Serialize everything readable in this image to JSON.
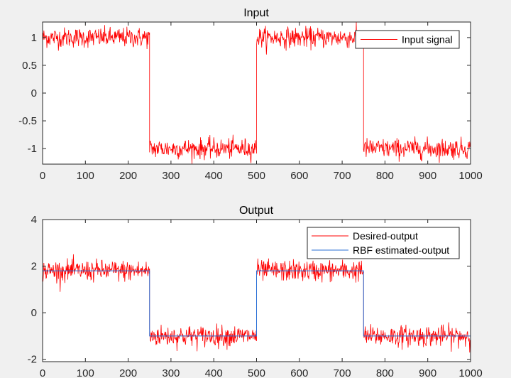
{
  "chart_data": [
    {
      "type": "line",
      "title": "Input",
      "xlabel": "",
      "ylabel": "",
      "xlim": [
        0,
        1000
      ],
      "ylim": [
        -1.28,
        1.28
      ],
      "xticks": [
        "0",
        "100",
        "200",
        "300",
        "400",
        "500",
        "600",
        "700",
        "800",
        "900",
        "1000"
      ],
      "yticks": [
        "1",
        "0.5",
        "0",
        "-0.5",
        "-1"
      ],
      "legend_position": "top-right",
      "series": [
        {
          "name": "Input signal",
          "color": "#ff0000",
          "segments": [
            {
              "x_start": 0,
              "x_end": 250,
              "level": 1.0
            },
            {
              "x_start": 250,
              "x_end": 500,
              "level": -1.0
            },
            {
              "x_start": 500,
              "x_end": 750,
              "level": 1.0
            },
            {
              "x_start": 750,
              "x_end": 1000,
              "level": -1.0
            }
          ],
          "noise_amplitude": 0.1
        }
      ]
    },
    {
      "type": "line",
      "title": "Output",
      "xlabel": "",
      "ylabel": "",
      "xlim": [
        0,
        1000
      ],
      "ylim": [
        -2.1,
        4.0
      ],
      "xticks": [
        "0",
        "100",
        "200",
        "300",
        "400",
        "500",
        "600",
        "700",
        "800",
        "900",
        "1000"
      ],
      "yticks": [
        "4",
        "2",
        "0",
        "-2"
      ],
      "legend_position": "top-right",
      "series": [
        {
          "name": "Desired-output",
          "color": "#ff0000",
          "segments": [
            {
              "x_start": 0,
              "x_end": 250,
              "level": 1.8
            },
            {
              "x_start": 250,
              "x_end": 500,
              "level": -1.0
            },
            {
              "x_start": 500,
              "x_end": 750,
              "level": 1.8
            },
            {
              "x_start": 750,
              "x_end": 1000,
              "level": -1.0
            }
          ],
          "noise_amplitude": 0.25
        },
        {
          "name": "RBF estimated-output",
          "color": "#2a6fd6",
          "segments": [
            {
              "x_start": 0,
              "x_end": 250,
              "level": 1.8
            },
            {
              "x_start": 250,
              "x_end": 500,
              "level": -1.0
            },
            {
              "x_start": 500,
              "x_end": 750,
              "level": 1.8
            },
            {
              "x_start": 750,
              "x_end": 1000,
              "level": -1.0
            }
          ],
          "noise_amplitude": 0.0
        }
      ]
    }
  ]
}
